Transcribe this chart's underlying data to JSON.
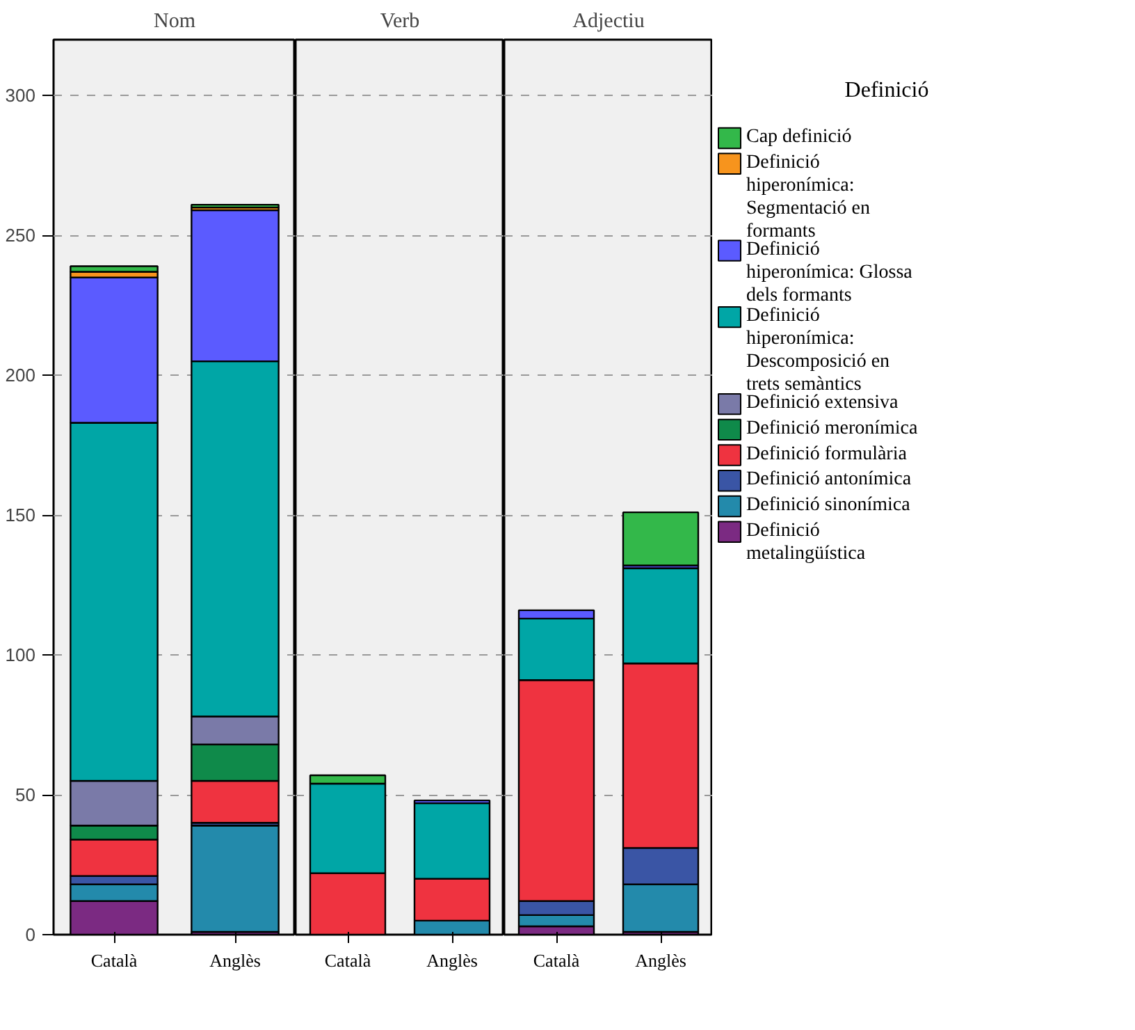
{
  "chart_data": [
    {
      "type": "bar",
      "stacked": true,
      "title": "Nom",
      "categories": [
        "Català",
        "Anglès"
      ],
      "ylim": [
        0,
        320
      ],
      "yticks": [
        0,
        50,
        100,
        150,
        200,
        250,
        300
      ],
      "grid": "y",
      "series": [
        {
          "color": "#7b2a82",
          "values": [
            12,
            1
          ]
        },
        {
          "color": "#238aab",
          "values": [
            6,
            38
          ]
        },
        {
          "color": "#3a55a5",
          "values": [
            3,
            1
          ]
        },
        {
          "color": "#ef3340",
          "values": [
            13,
            15
          ]
        },
        {
          "color": "#0f8a4a",
          "values": [
            5,
            13
          ]
        },
        {
          "color": "#7a7aa8",
          "values": [
            16,
            10
          ]
        },
        {
          "color": "#00a6a6",
          "values": [
            128,
            127
          ]
        },
        {
          "color": "#5b5bff",
          "values": [
            52,
            54
          ]
        },
        {
          "color": "#f7941d",
          "values": [
            2,
            1
          ]
        },
        {
          "color": "#33b84a",
          "values": [
            2,
            1
          ]
        }
      ]
    },
    {
      "type": "bar",
      "stacked": true,
      "title": "Verb",
      "categories": [
        "Català",
        "Anglès"
      ],
      "ylim": [
        0,
        320
      ],
      "yticks": [
        0,
        50,
        100,
        150,
        200,
        250,
        300
      ],
      "grid": "y",
      "tick_labels": "x",
      "series": [
        {
          "color": "#7b2a82",
          "values": [
            null,
            null
          ]
        },
        {
          "color": "#238aab",
          "values": [
            null,
            5
          ]
        },
        {
          "color": "#3a55a5",
          "values": [
            null,
            null
          ]
        },
        {
          "color": "#ef3340",
          "values": [
            22,
            15
          ]
        },
        {
          "color": "#0f8a4a",
          "values": [
            null,
            null
          ]
        },
        {
          "color": "#7a7aa8",
          "values": [
            null,
            null
          ]
        },
        {
          "color": "#00a6a6",
          "values": [
            32,
            27
          ]
        },
        {
          "color": "#5b5bff",
          "values": [
            null,
            1
          ]
        },
        {
          "color": "#f7941d",
          "values": [
            null,
            null
          ]
        },
        {
          "color": "#33b84a",
          "values": [
            3,
            null
          ]
        }
      ]
    },
    {
      "type": "bar",
      "stacked": true,
      "title": "Adjectiu",
      "categories": [
        "Català",
        "Anglès"
      ],
      "ylim": [
        0,
        320
      ],
      "yticks": [
        0,
        50,
        100,
        150,
        200,
        250,
        300
      ],
      "grid": "y",
      "legend": "right",
      "legend_title": "Definició",
      "tick_labels": "x",
      "series": [
        {
          "name": "Definició metalingüística",
          "color": "#7b2a82",
          "values": [
            3,
            1
          ]
        },
        {
          "name": "Definició sinonímica",
          "color": "#238aab",
          "values": [
            4,
            17
          ]
        },
        {
          "name": "Definició antonímica",
          "color": "#3a55a5",
          "values": [
            5,
            13
          ]
        },
        {
          "name": "Definició formulària",
          "color": "#ef3340",
          "values": [
            79,
            66
          ]
        },
        {
          "name": "Definició meronímica",
          "color": "#0f8a4a",
          "values": [
            null,
            null
          ]
        },
        {
          "name": "Definició extensiva",
          "color": "#7a7aa8",
          "values": [
            null,
            null
          ]
        },
        {
          "name": "Definició hiperonímica: Descomposició en trets semàntics",
          "color": "#00a6a6",
          "values": [
            22,
            34
          ]
        },
        {
          "name": "Definició hiperonímica: Glossa dels formants",
          "color": "#5b5bff",
          "values": [
            3,
            1
          ]
        },
        {
          "name": "Definició hiperonímica: Segmentació en formants",
          "color": "#f7941d",
          "values": [
            null,
            null
          ]
        },
        {
          "name": "Cap definició",
          "color": "#33b84a",
          "values": [
            null,
            19
          ]
        }
      ]
    }
  ]
}
